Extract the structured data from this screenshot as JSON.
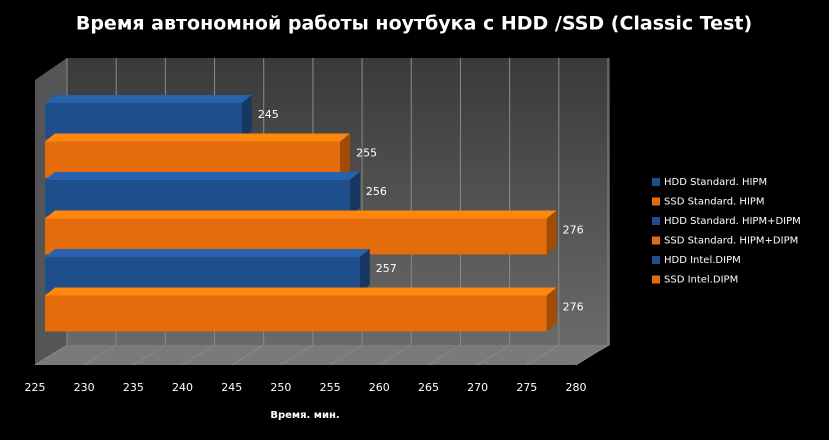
{
  "chart_data": {
    "type": "bar",
    "orientation": "horizontal",
    "title": "Время автономной работы ноутбука с HDD /SSD (Classic Test)",
    "x_label": "Время. мин.",
    "series": [
      {
        "name": "HDD  Standard. HIPM",
        "color": "#1f4e8c",
        "values": [
          245
        ]
      },
      {
        "name": "SSD  Standard. HIPM",
        "color": "#e46c0a",
        "values": [
          255
        ]
      },
      {
        "name": "HDD  Standard. HIPM+DIPM",
        "color": "#1f4e8c",
        "values": [
          256
        ]
      },
      {
        "name": "SSD  Standard. HIPM+DIPM",
        "color": "#e46c0a",
        "values": [
          276
        ]
      },
      {
        "name": "HDD  Intel.DIPM",
        "color": "#1f4e8c",
        "values": [
          257
        ]
      },
      {
        "name": "SSD  Intel.DIPM",
        "color": "#e46c0a",
        "values": [
          276
        ]
      }
    ],
    "xlim": [
      225,
      280
    ],
    "xticks": [
      225,
      230,
      235,
      240,
      245,
      250,
      255,
      260,
      265,
      270,
      275,
      280
    ],
    "grid": true,
    "legend": "right"
  }
}
